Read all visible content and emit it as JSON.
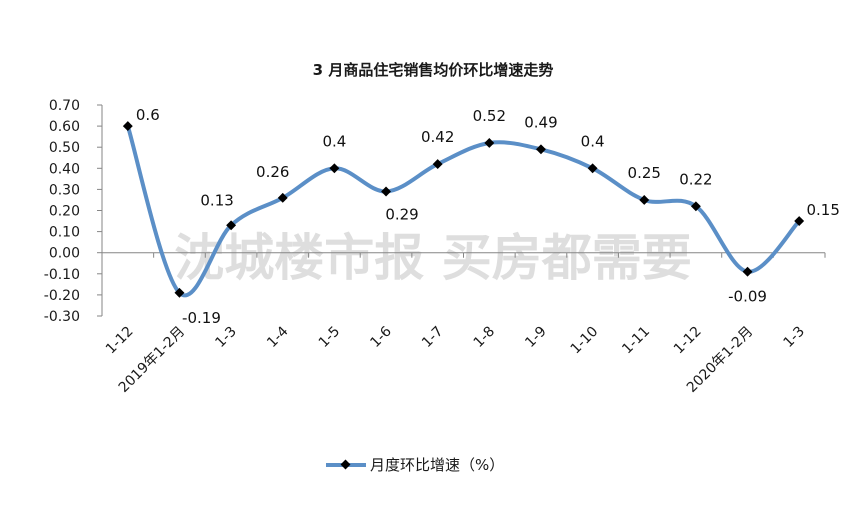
{
  "chart_data": {
    "type": "line",
    "title": "3 月商品住宅销售均价环比增速走势",
    "xlabel": "",
    "ylabel": "",
    "categories": [
      "1-12",
      "2019年1-2月",
      "1-3",
      "1-4",
      "1-5",
      "1-6",
      "1-7",
      "1-8",
      "1-9",
      "1-10",
      "1-11",
      "1-12",
      "2020年1-2月",
      "1-3"
    ],
    "series": [
      {
        "name": "月度环比增速（%）",
        "values": [
          0.6,
          -0.19,
          0.13,
          0.26,
          0.4,
          0.29,
          0.42,
          0.52,
          0.49,
          0.4,
          0.25,
          0.22,
          -0.09,
          0.15
        ],
        "data_labels": [
          "0.6",
          "-0.19",
          "0.13",
          "0.26",
          "0.4",
          "0.29",
          "0.42",
          "0.52",
          "0.49",
          "0.4",
          "0.25",
          "0.22",
          "-0.09",
          "0.15"
        ],
        "color": "#5b8fc7",
        "marker": "diamond",
        "marker_color": "#000000",
        "smooth": true
      }
    ],
    "ylim": [
      -0.3,
      0.7
    ],
    "yticks": [
      "0.70",
      "0.60",
      "0.50",
      "0.40",
      "0.30",
      "0.20",
      "0.10",
      "0.00",
      "-0.10",
      "-0.20",
      "-0.30"
    ],
    "grid": false,
    "legend_position": "bottom",
    "watermark": "沈城楼市报 买房都需要"
  },
  "legend": {
    "label": "月度环比增速（%）"
  }
}
